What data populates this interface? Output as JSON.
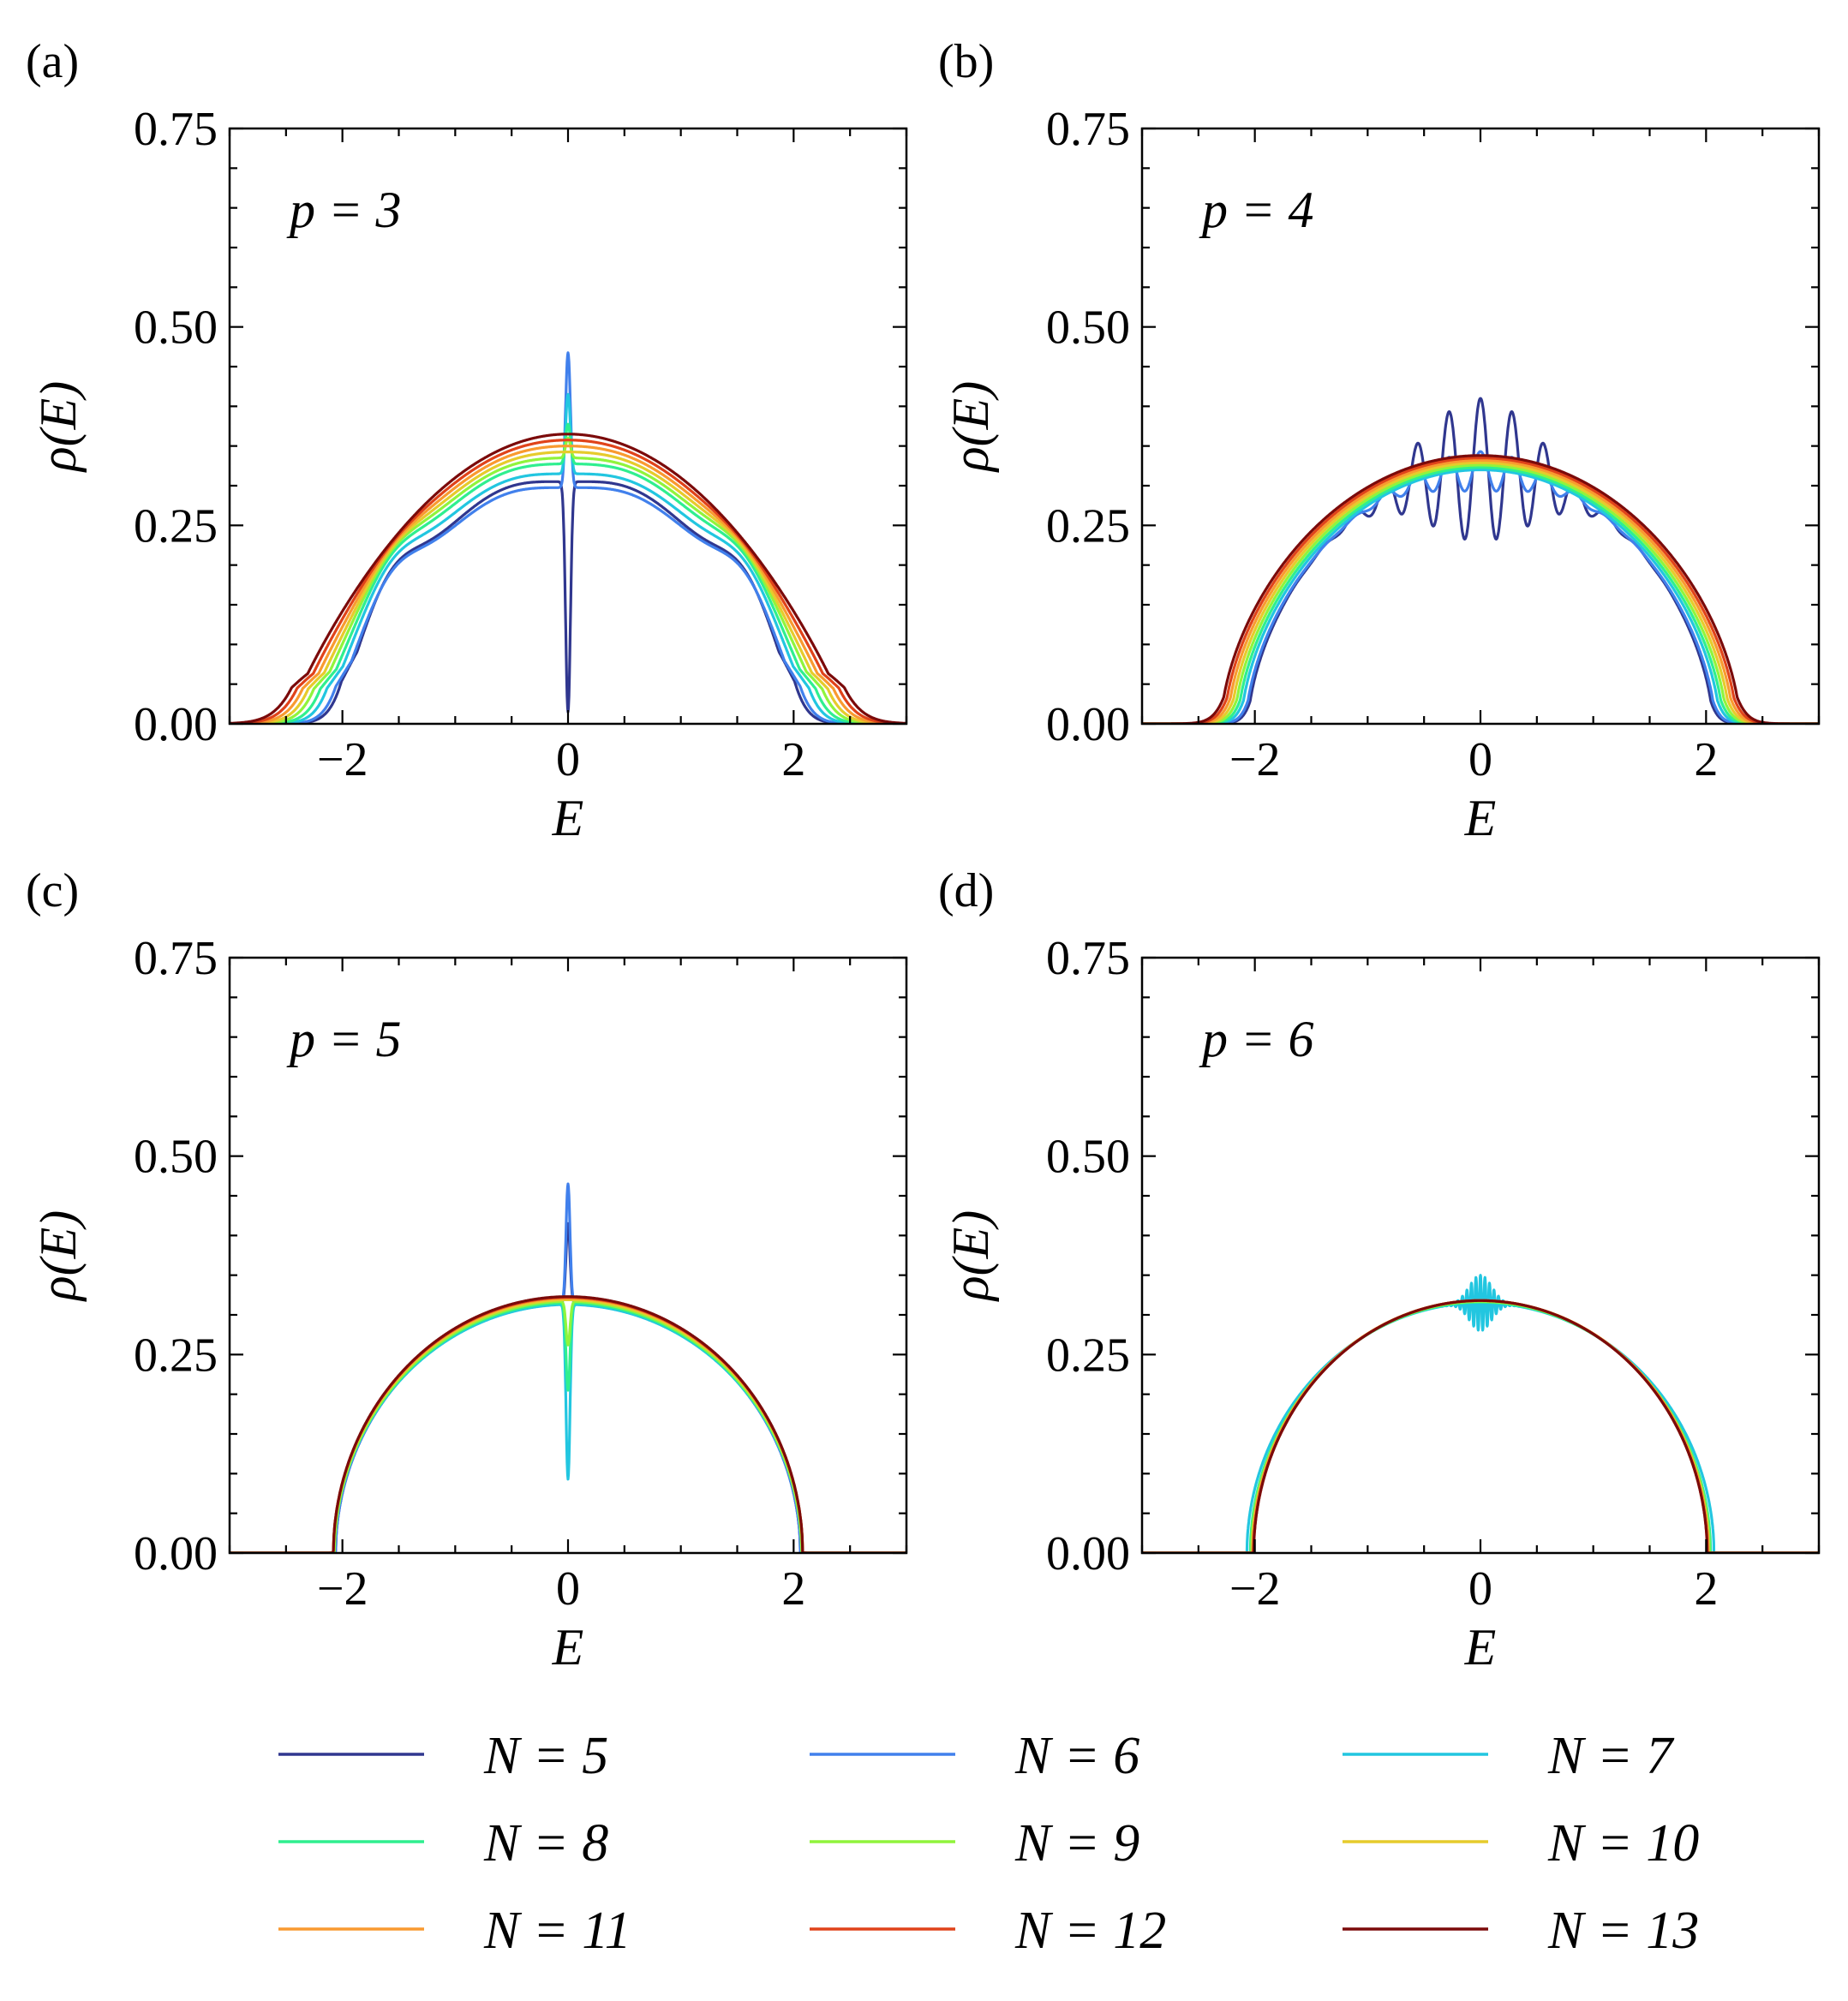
{
  "chart_data": [
    {
      "type": "line",
      "panel_label": "(a)",
      "annotation": "p = 3",
      "xlabel": "E",
      "ylabel": "ρ(E)",
      "xlim": [
        -3,
        3
      ],
      "ylim": [
        0,
        0.75
      ],
      "xticks": [
        -2,
        0,
        2
      ],
      "xtick_labels": [
        "−2",
        "0",
        "2"
      ],
      "yticks": [
        0,
        0.25,
        0.5,
        0.75
      ],
      "ytick_labels": [
        "0.00",
        "0.25",
        "0.50",
        "0.75"
      ],
      "model": {
        "p": 3,
        "edge_width_N5": 0.32,
        "edge_width_N13": 0.5,
        "spike_N5": -0.29,
        "spike_N6": 0.17,
        "spike_N7": 0.1,
        "spike_width": 0.03
      },
      "series": [
        {
          "name": "N = 5",
          "peak": 0.325,
          "edge": 2.05
        },
        {
          "name": "N = 6",
          "peak": 0.315,
          "edge": 2.1
        },
        {
          "name": "N = 7",
          "peak": 0.33,
          "edge": 2.18
        },
        {
          "name": "N = 8",
          "peak": 0.34,
          "edge": 2.24
        },
        {
          "name": "N = 9",
          "peak": 0.345,
          "edge": 2.3
        },
        {
          "name": "N = 10",
          "peak": 0.35,
          "edge": 2.35
        },
        {
          "name": "N = 11",
          "peak": 0.355,
          "edge": 2.4
        },
        {
          "name": "N = 12",
          "peak": 0.36,
          "edge": 2.45
        },
        {
          "name": "N = 13",
          "peak": 0.365,
          "edge": 2.5
        }
      ]
    },
    {
      "type": "line",
      "panel_label": "(b)",
      "annotation": "p = 4",
      "xlabel": "E",
      "ylabel": "ρ(E)",
      "xlim": [
        -3,
        3
      ],
      "ylim": [
        0,
        0.75
      ],
      "xticks": [
        -2,
        0,
        2
      ],
      "xtick_labels": [
        "−2",
        "0",
        "2"
      ],
      "yticks": [
        0,
        0.25,
        0.5,
        0.75
      ],
      "ytick_labels": [
        "0.00",
        "0.25",
        "0.50",
        "0.75"
      ],
      "model": {
        "p": 4,
        "edge_width_N5": 0.22,
        "edge_width_N13": 0.3,
        "oscillation_N5": 0.09,
        "oscillation_N6": 0.025,
        "oscillation_period": 0.28
      },
      "series": [
        {
          "name": "N = 5",
          "peak": 0.32,
          "edge": 2.06
        },
        {
          "name": "N = 6",
          "peak": 0.318,
          "edge": 2.08
        },
        {
          "name": "N = 7",
          "peak": 0.32,
          "edge": 2.12
        },
        {
          "name": "N = 8",
          "peak": 0.323,
          "edge": 2.15
        },
        {
          "name": "N = 9",
          "peak": 0.326,
          "edge": 2.18
        },
        {
          "name": "N = 10",
          "peak": 0.329,
          "edge": 2.21
        },
        {
          "name": "N = 11",
          "peak": 0.332,
          "edge": 2.24
        },
        {
          "name": "N = 12",
          "peak": 0.335,
          "edge": 2.27
        },
        {
          "name": "N = 13",
          "peak": 0.338,
          "edge": 2.3
        }
      ]
    },
    {
      "type": "line",
      "panel_label": "(c)",
      "annotation": "p = 5",
      "xlabel": "E",
      "ylabel": "ρ(E)",
      "xlim": [
        -3,
        3
      ],
      "ylim": [
        0,
        0.75
      ],
      "xticks": [
        -2,
        0,
        2
      ],
      "xtick_labels": [
        "−2",
        "0",
        "2"
      ],
      "yticks": [
        0,
        0.25,
        0.5,
        0.75
      ],
      "ytick_labels": [
        "0.00",
        "0.25",
        "0.50",
        "0.75"
      ],
      "model": {
        "p": 5,
        "edge_width_N5": 0.06,
        "edge_width_N13": 0.06,
        "spike_N5": 0.1,
        "spike_N6": 0.15,
        "spike_N7": -0.22,
        "spike_width": 0.025
      },
      "series": [
        {
          "name": "N = 5",
          "peak": 0.315,
          "edge": 2.06
        },
        {
          "name": "N = 6",
          "peak": 0.315,
          "edge": 2.06
        },
        {
          "name": "N = 7",
          "peak": 0.313,
          "edge": 2.07
        },
        {
          "name": "N = 8",
          "peak": 0.315,
          "edge": 2.07
        },
        {
          "name": "N = 9",
          "peak": 0.317,
          "edge": 2.07
        },
        {
          "name": "N = 10",
          "peak": 0.319,
          "edge": 2.08
        },
        {
          "name": "N = 11",
          "peak": 0.321,
          "edge": 2.08
        },
        {
          "name": "N = 12",
          "peak": 0.322,
          "edge": 2.08
        },
        {
          "name": "N = 13",
          "peak": 0.323,
          "edge": 2.08
        }
      ]
    },
    {
      "type": "line",
      "panel_label": "(d)",
      "annotation": "p = 6",
      "xlabel": "E",
      "ylabel": "ρ(E)",
      "xlim": [
        -3,
        3
      ],
      "ylim": [
        0,
        0.75
      ],
      "xticks": [
        -2,
        0,
        2
      ],
      "xtick_labels": [
        "−2",
        "0",
        "2"
      ],
      "yticks": [
        0,
        0.25,
        0.5,
        0.75
      ],
      "ytick_labels": [
        "0.00",
        "0.25",
        "0.50",
        "0.75"
      ],
      "model": {
        "p": 6,
        "edge_width_N5": 0.05,
        "edge_width_N13": 0.03,
        "oscillation_N7": 0.035,
        "oscillation_period": 0.04
      },
      "series": [
        {
          "name": "N = 7",
          "peak": 0.315,
          "edge": 2.07
        },
        {
          "name": "N = 8",
          "peak": 0.316,
          "edge": 2.04
        },
        {
          "name": "N = 9",
          "peak": 0.317,
          "edge": 2.03
        },
        {
          "name": "N = 10",
          "peak": 0.318,
          "edge": 2.02
        },
        {
          "name": "N = 11",
          "peak": 0.318,
          "edge": 2.02
        },
        {
          "name": "N = 12",
          "peak": 0.318,
          "edge": 2.01
        },
        {
          "name": "N = 13",
          "peak": 0.318,
          "edge": 2.01
        }
      ]
    }
  ],
  "legend": {
    "placement": "bottom",
    "entries": [
      {
        "label": "N = 5",
        "color": "#30378f"
      },
      {
        "label": "N = 6",
        "color": "#4180ec"
      },
      {
        "label": "N = 7",
        "color": "#22c6e0"
      },
      {
        "label": "N = 8",
        "color": "#2fef8f"
      },
      {
        "label": "N = 9",
        "color": "#90f43c"
      },
      {
        "label": "N = 10",
        "color": "#e6cb2c"
      },
      {
        "label": "N = 11",
        "color": "#f99a30"
      },
      {
        "label": "N = 12",
        "color": "#e0431a"
      },
      {
        "label": "N = 13",
        "color": "#7b0a0a"
      }
    ]
  }
}
